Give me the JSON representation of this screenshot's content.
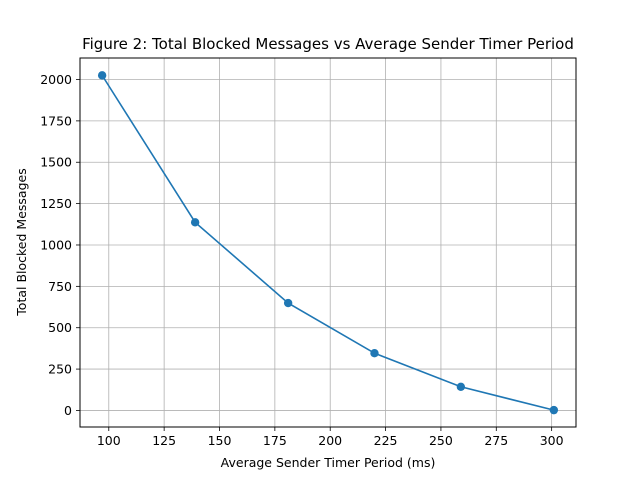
{
  "chart_data": {
    "type": "line",
    "title": "Figure 2: Total Blocked Messages vs Average Sender Timer Period",
    "xlabel": "Average Sender Timer Period (ms)",
    "ylabel": "Total Blocked Messages",
    "xlim": [
      87,
      311
    ],
    "ylim": [
      -100,
      2130
    ],
    "xticks": [
      100,
      125,
      150,
      175,
      200,
      225,
      250,
      275,
      300
    ],
    "yticks": [
      0,
      250,
      500,
      750,
      1000,
      1250,
      1500,
      1750,
      2000
    ],
    "grid": true,
    "color": "#1f77b4",
    "marker": "circle",
    "series": [
      {
        "x": [
          97,
          139,
          181,
          220,
          259,
          301
        ],
        "y": [
          2025,
          1137,
          649,
          346,
          143,
          2
        ]
      }
    ]
  }
}
